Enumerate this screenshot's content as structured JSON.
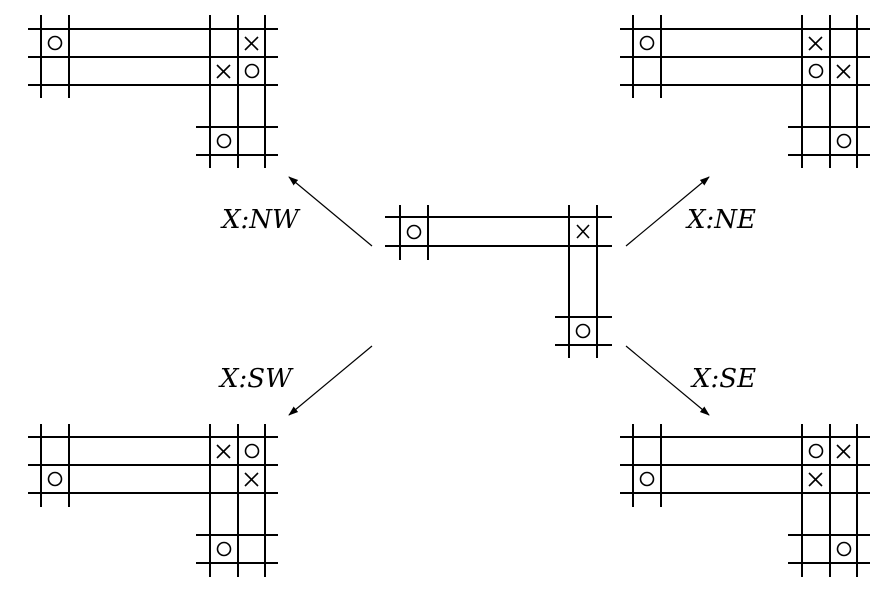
{
  "labels": {
    "nw": "X:NW",
    "ne": "X:NE",
    "sw": "X:SW",
    "se": "X:SE"
  },
  "panels": {
    "center": {
      "o1": "O at left end of horizontal corridor",
      "x1": "X at corner",
      "o2": "O at bottom of vertical corridor"
    },
    "nw": {
      "marks": [
        "O",
        "X",
        "X",
        "O",
        "O"
      ]
    },
    "ne": {
      "marks": [
        "O",
        "X",
        "O",
        "X",
        "O"
      ]
    },
    "sw": {
      "marks": [
        "X",
        "O",
        "O",
        "X",
        "O"
      ]
    },
    "se": {
      "marks": [
        "O",
        "X",
        "O",
        "X",
        "O"
      ]
    }
  },
  "colors": {
    "ink": "#000000",
    "background": "#ffffff"
  }
}
